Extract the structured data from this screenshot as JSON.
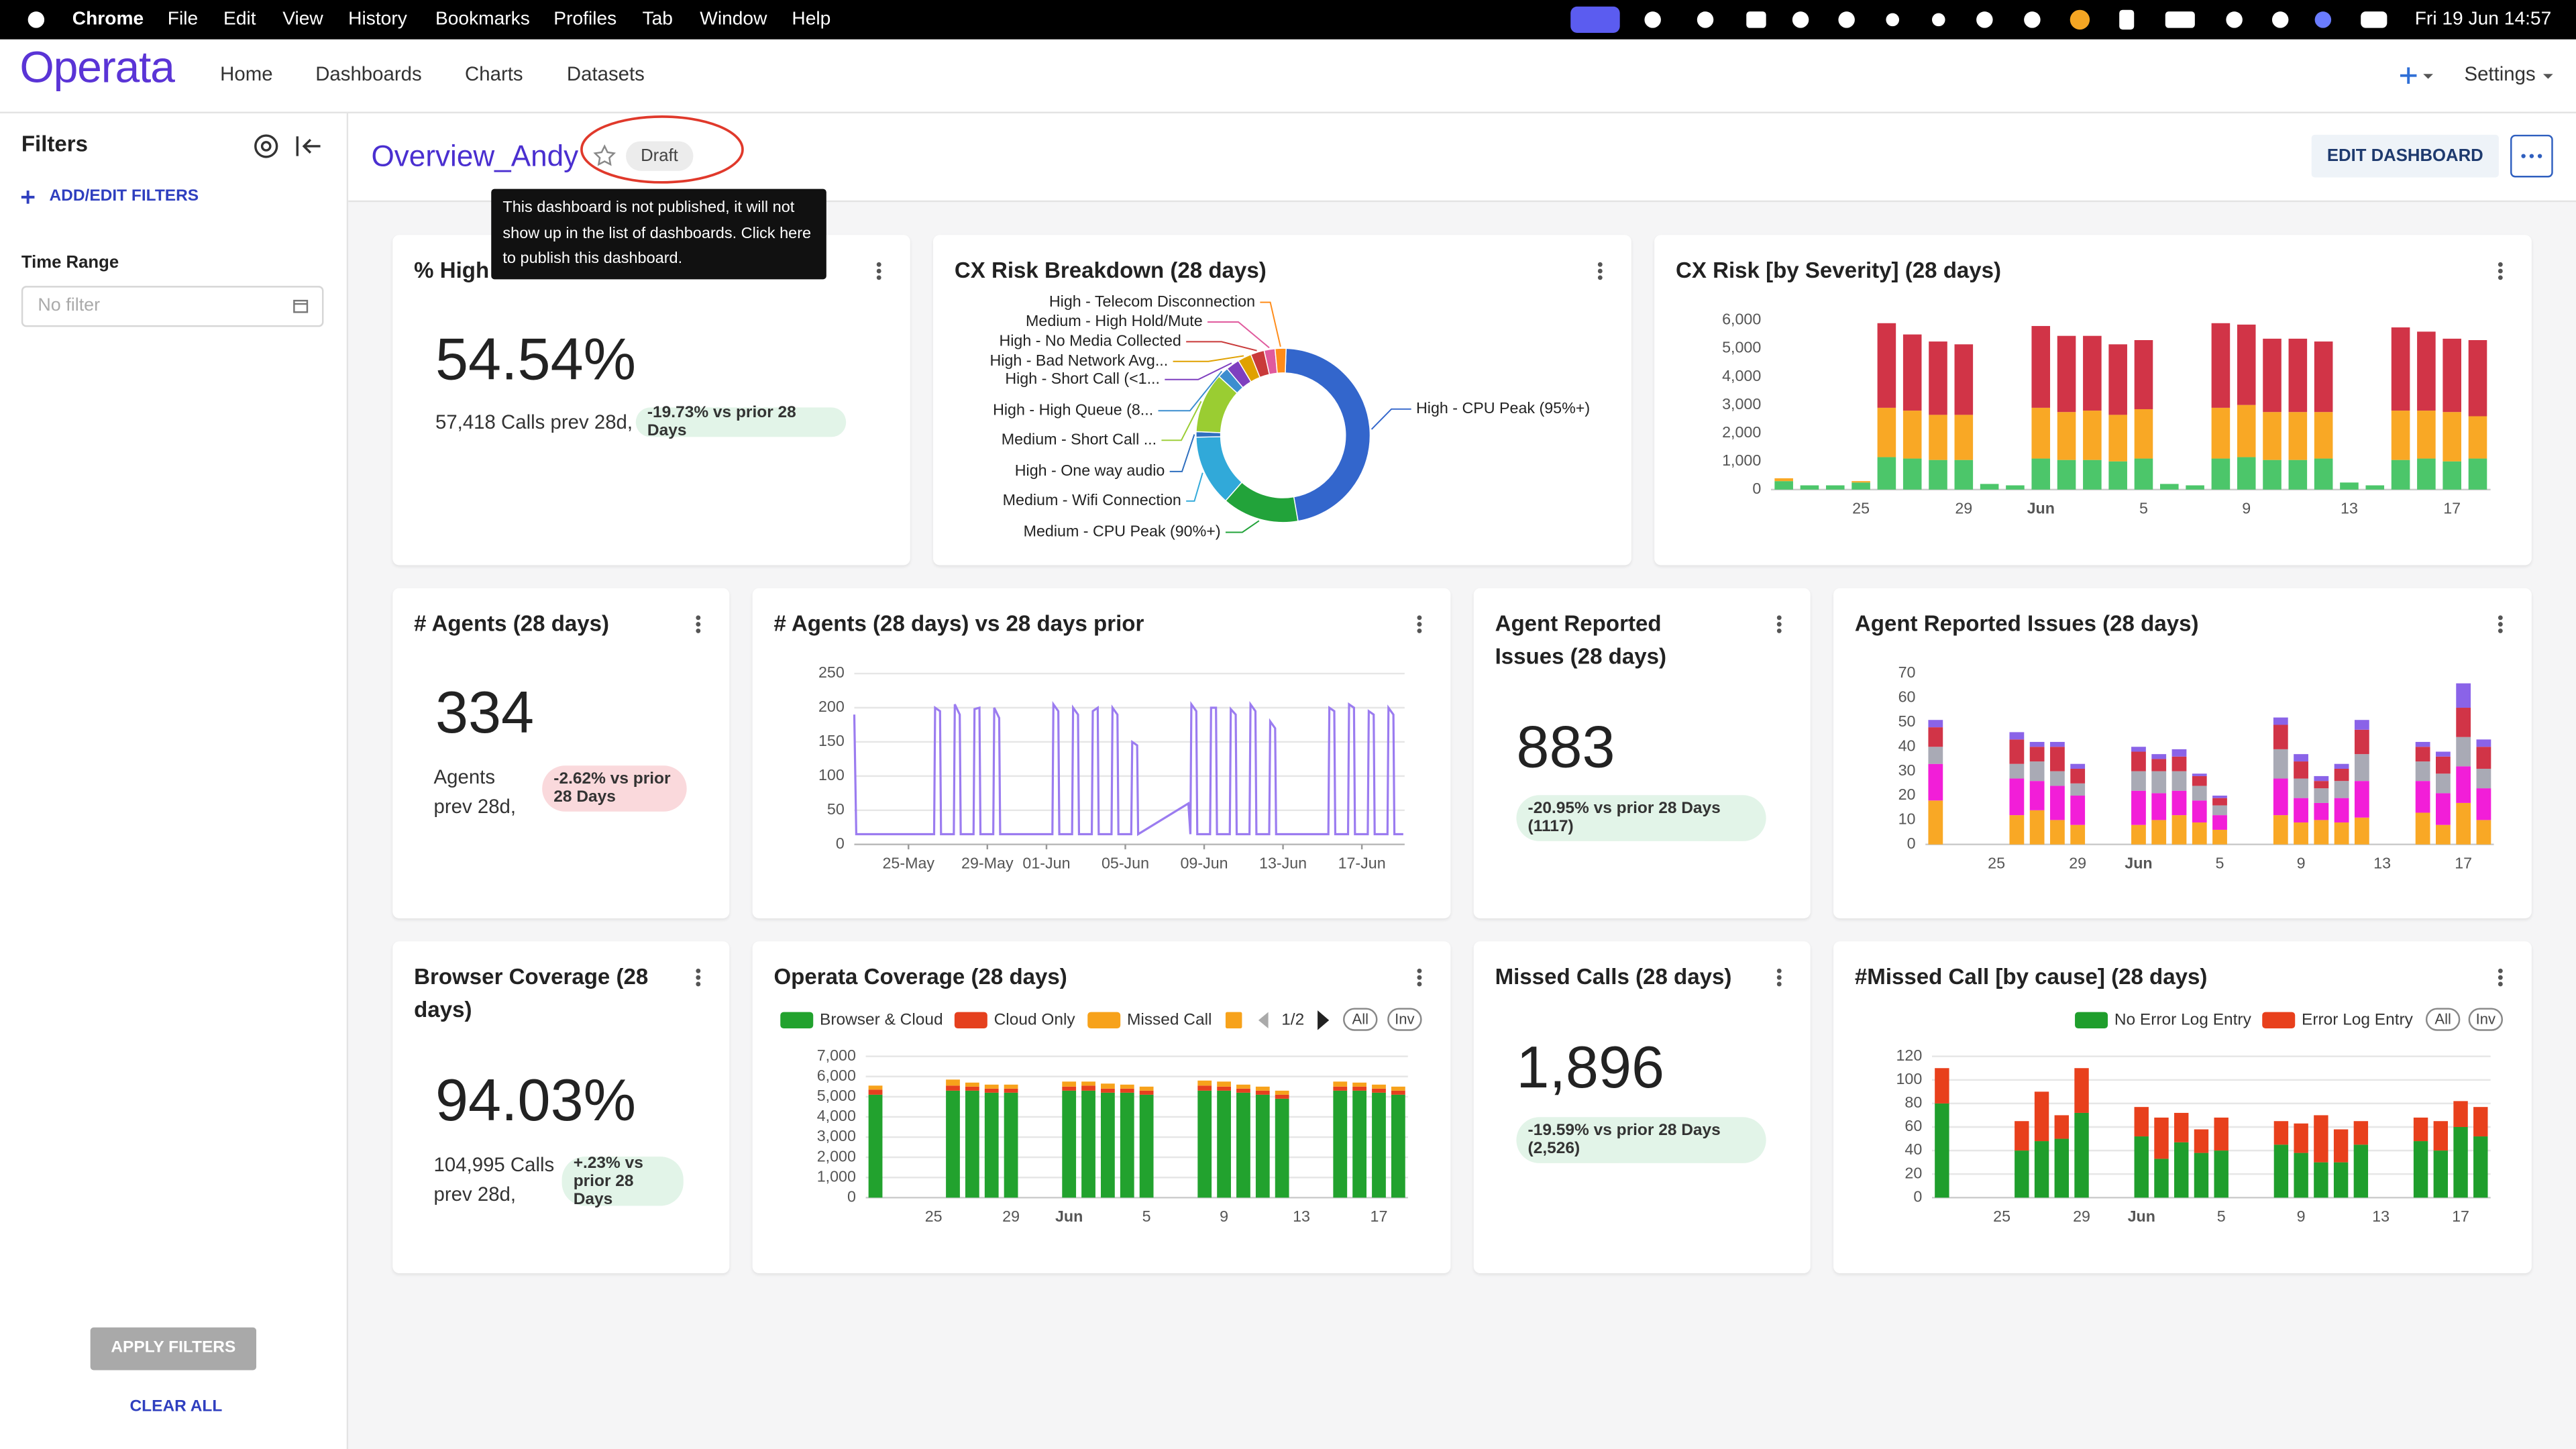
{
  "menubar": {
    "app": "Chrome",
    "items": [
      "File",
      "Edit",
      "View",
      "History",
      "Bookmarks",
      "Profiles",
      "Tab",
      "Window",
      "Help"
    ],
    "clock": "Fri 19 Jun  14:57"
  },
  "nav": {
    "logo": "Operata",
    "links": [
      "Home",
      "Dashboards",
      "Charts",
      "Datasets"
    ],
    "settings": "Settings"
  },
  "sidebar": {
    "title": "Filters",
    "add_filters": "ADD/EDIT FILTERS",
    "time_range_label": "Time Range",
    "time_range_placeholder": "No filter",
    "apply": "APPLY FILTERS",
    "clear": "CLEAR ALL"
  },
  "dashboard": {
    "title": "Overview_Andy",
    "status": "Draft",
    "edit_button": "EDIT DASHBOARD",
    "tooltip": "This dashboard is not published, it will not show up in the list of dashboards. Click here to publish this dashboard."
  },
  "kpis": [
    {
      "title": "% High",
      "value": "54.54%",
      "subtext": "57,418 Calls prev 28d,",
      "badge": "-19.73% vs prior 28 Days",
      "badge_color": "#e2f4e8"
    },
    {
      "title": "# Agents (28 days)",
      "value": "334",
      "subtext": "Agents prev 28d,",
      "badge": "-2.62% vs prior 28 Days",
      "badge_color": "#fad9dc"
    },
    {
      "title": "Agent Reported Issues (28 days)",
      "value": "883",
      "badge": "-20.95% vs prior 28 Days (1117)",
      "badge_color": "#e2f4e8"
    },
    {
      "title": "Browser Coverage (28 days)",
      "value": "94.03%",
      "subtext": "104,995 Calls prev 28d,",
      "badge": "+.23% vs prior 28 Days",
      "badge_color": "#e2f4e8"
    },
    {
      "title": "Missed Calls (28 days)",
      "value": "1,896",
      "badge": "-19.59% vs prior 28 Days (2,526)",
      "badge_color": "#e2f4e8"
    }
  ],
  "chart_data": [
    {
      "type": "donut",
      "title": "CX Risk Breakdown (28 days)",
      "labels": [
        "High - CPU Peak (95%+)",
        "Medium - CPU Peak (90%+)",
        "Medium - Wifi Connection",
        "High - One way audio",
        "Medium - Short Call  ...",
        "High - High Queue (8...",
        "High - Short Call (<1...",
        "High - Bad Network Avg...",
        "High - No Media Collected",
        "Medium - High Hold/Mute",
        "High - Telecom Disconnection"
      ],
      "values": [
        46,
        14,
        13,
        1,
        11,
        2,
        2.5,
        2.5,
        2.5,
        2,
        2
      ],
      "colors": [
        "#3366cc",
        "#22a33a",
        "#31a9d9",
        "#2f6fbf",
        "#9acd32",
        "#3c8ecf",
        "#7f3fbf",
        "#e0a100",
        "#c93a3a",
        "#e05a9d",
        "#ff8c1a"
      ]
    },
    {
      "type": "stacked-bar",
      "title": "CX Risk [by Severity] (28 days)",
      "categories": [
        null,
        null,
        null,
        "25",
        null,
        null,
        null,
        "29",
        null,
        null,
        "Jun",
        null,
        null,
        null,
        "5",
        null,
        null,
        null,
        "9",
        null,
        null,
        null,
        "13",
        null,
        null,
        null,
        "17",
        null
      ],
      "series": [
        {
          "color": "#4cc66a",
          "values": [
            300,
            150,
            150,
            250,
            1150,
            1100,
            1050,
            1050,
            200,
            150,
            1100,
            1050,
            1050,
            1000,
            1100,
            200,
            150,
            1100,
            1150,
            1050,
            1050,
            1100,
            250,
            150,
            1050,
            1100,
            1000,
            1100
          ]
        },
        {
          "color": "#f9a825",
          "values": [
            100,
            0,
            0,
            50,
            1750,
            1700,
            1600,
            1600,
            0,
            0,
            1800,
            1700,
            1750,
            1650,
            1750,
            0,
            0,
            1800,
            1850,
            1700,
            1700,
            1650,
            0,
            0,
            1750,
            1700,
            1750,
            1500
          ]
        },
        {
          "color": "#d13447",
          "values": [
            0,
            0,
            0,
            0,
            3000,
            2700,
            2600,
            2500,
            0,
            0,
            2900,
            2700,
            2650,
            2500,
            2450,
            0,
            0,
            3000,
            2850,
            2600,
            2600,
            2500,
            0,
            0,
            2950,
            2800,
            2600,
            2700
          ]
        }
      ],
      "ylim": [
        0,
        6000
      ],
      "yticks": [
        0,
        {
          "value": 1000,
          "label": "1,000"
        },
        {
          "value": 2000,
          "label": "2,000"
        },
        {
          "value": 3000,
          "label": "3,000"
        },
        {
          "value": 4000,
          "label": "4,000"
        },
        {
          "value": 5000,
          "label": "5,000"
        },
        {
          "value": 6000,
          "label": "6,000"
        }
      ],
      "grid": false
    },
    {
      "type": "line",
      "title": "# Agents (28 days) vs 28 days prior",
      "color": "#9b7cf0",
      "x": [
        -2.75,
        -2.65,
        1.3,
        1.35,
        1.6,
        1.65,
        2.3,
        2.35,
        2.6,
        2.65,
        3.3,
        3.35,
        3.6,
        3.65,
        4.3,
        4.35,
        4.6,
        4.65,
        7.3,
        7.35,
        7.6,
        7.65,
        8.3,
        8.35,
        8.6,
        8.65,
        9.3,
        9.35,
        9.6,
        9.65,
        10.3,
        10.35,
        10.6,
        10.65,
        11.3,
        11.35,
        11.6,
        11.65,
        14.2,
        14.3,
        14.35,
        14.6,
        14.65,
        15.3,
        15.35,
        15.6,
        15.65,
        16.3,
        16.35,
        16.6,
        16.65,
        17.3,
        17.35,
        17.6,
        17.65,
        18.3,
        18.35,
        18.6,
        18.65,
        21.3,
        21.35,
        21.6,
        21.65,
        22.3,
        22.35,
        22.6,
        22.65,
        23.3,
        23.35,
        23.6,
        23.65,
        24.3,
        24.35,
        24.6,
        24.65,
        25.1
      ],
      "values": [
        190,
        15,
        15,
        200,
        195,
        15,
        15,
        205,
        190,
        15,
        15,
        198,
        200,
        15,
        15,
        200,
        185,
        15,
        15,
        205,
        195,
        15,
        15,
        200,
        190,
        15,
        15,
        195,
        200,
        15,
        15,
        200,
        190,
        15,
        15,
        150,
        145,
        15,
        60,
        15,
        205,
        195,
        15,
        15,
        200,
        200,
        15,
        15,
        198,
        190,
        15,
        15,
        205,
        195,
        15,
        15,
        180,
        170,
        15,
        15,
        200,
        195,
        15,
        15,
        205,
        200,
        15,
        15,
        195,
        190,
        15,
        15,
        200,
        190,
        15,
        15
      ],
      "xlim": [
        -2.75,
        25.17
      ],
      "xticks": [
        {
          "value": 0,
          "label": "25-May"
        },
        {
          "value": 4,
          "label": "29-May"
        },
        {
          "value": 7,
          "label": "01-Jun"
        },
        {
          "value": 11,
          "label": "05-Jun"
        },
        {
          "value": 15,
          "label": "09-Jun"
        },
        {
          "value": 19,
          "label": "13-Jun"
        },
        {
          "value": 23,
          "label": "17-Jun"
        }
      ],
      "ylim": [
        0,
        250
      ],
      "yticks": [
        0,
        50,
        100,
        150,
        200,
        250
      ],
      "grid": true
    },
    {
      "type": "stacked-bar",
      "title": "Agent Reported Issues (28 days)",
      "categories": [
        null,
        null,
        null,
        "25",
        null,
        null,
        null,
        "29",
        null,
        null,
        "Jun",
        null,
        null,
        null,
        "5",
        null,
        null,
        null,
        "9",
        null,
        null,
        null,
        "13",
        null,
        null,
        null,
        "17",
        null
      ],
      "series": [
        {
          "color": "#f9a825",
          "values": [
            18,
            0,
            0,
            0,
            12,
            14,
            10,
            8,
            0,
            0,
            8,
            10,
            12,
            9,
            6,
            0,
            0,
            12,
            9,
            10,
            9,
            11,
            0,
            0,
            13,
            8,
            17,
            10
          ]
        },
        {
          "color": "#f21ed8",
          "values": [
            15,
            0,
            0,
            0,
            15,
            12,
            14,
            12,
            0,
            0,
            14,
            11,
            10,
            9,
            6,
            0,
            0,
            15,
            10,
            7,
            10,
            15,
            0,
            0,
            13,
            13,
            15,
            13
          ]
        },
        {
          "color": "#a9aab5",
          "values": [
            7,
            0,
            0,
            0,
            6,
            8,
            6,
            5,
            0,
            0,
            8,
            9,
            8,
            6,
            4,
            0,
            0,
            12,
            8,
            6,
            7,
            11,
            0,
            0,
            8,
            8,
            12,
            8
          ]
        },
        {
          "color": "#d13447",
          "values": [
            8,
            0,
            0,
            0,
            10,
            6,
            10,
            6,
            0,
            0,
            8,
            5,
            6,
            4,
            3,
            0,
            0,
            10,
            7,
            3,
            5,
            10,
            0,
            0,
            6,
            7,
            12,
            9
          ]
        },
        {
          "color": "#8a63e8",
          "values": [
            3,
            0,
            0,
            0,
            3,
            2,
            2,
            2,
            0,
            0,
            2,
            2,
            3,
            1,
            1,
            0,
            0,
            3,
            3,
            2,
            2,
            4,
            0,
            0,
            2,
            2,
            10,
            3
          ]
        }
      ],
      "ylim": [
        0,
        70
      ],
      "yticks": [
        0,
        10,
        20,
        30,
        40,
        50,
        60,
        70
      ],
      "grid": false
    },
    {
      "type": "stacked-bar",
      "title": "Operata Coverage (28 days)",
      "categories": [
        null,
        null,
        null,
        "25",
        null,
        null,
        null,
        "29",
        null,
        null,
        "Jun",
        null,
        null,
        null,
        "5",
        null,
        null,
        null,
        "9",
        null,
        null,
        null,
        "13",
        null,
        null,
        null,
        "17",
        null
      ],
      "series": [
        {
          "name": "Browser & Cloud",
          "color": "#22a22e",
          "values": [
            5100,
            0,
            0,
            0,
            5300,
            5300,
            5200,
            5200,
            0,
            0,
            5300,
            5300,
            5200,
            5200,
            5100,
            0,
            0,
            5300,
            5300,
            5200,
            5100,
            4900,
            0,
            0,
            5300,
            5300,
            5200,
            5100
          ]
        },
        {
          "name": "Cloud Only",
          "color": "#e5401e",
          "values": [
            250,
            0,
            0,
            0,
            250,
            200,
            200,
            200,
            0,
            0,
            200,
            250,
            200,
            200,
            200,
            0,
            0,
            250,
            200,
            200,
            200,
            200,
            0,
            0,
            200,
            200,
            200,
            200
          ]
        },
        {
          "name": "Missed Call",
          "color": "#f7a21b",
          "values": [
            200,
            0,
            0,
            0,
            300,
            200,
            200,
            200,
            0,
            0,
            250,
            200,
            250,
            200,
            200,
            0,
            0,
            250,
            250,
            200,
            200,
            200,
            0,
            0,
            250,
            200,
            200,
            200
          ]
        }
      ],
      "legend_page": "1/2",
      "legend_buttons": [
        "All",
        "Inv"
      ],
      "ylim": [
        0,
        7000
      ],
      "yticks": [
        0,
        {
          "value": 1000,
          "label": "1,000"
        },
        {
          "value": 2000,
          "label": "2,000"
        },
        {
          "value": 3000,
          "label": "3,000"
        },
        {
          "value": 4000,
          "label": "4,000"
        },
        {
          "value": 5000,
          "label": "5,000"
        },
        {
          "value": 6000,
          "label": "6,000"
        },
        {
          "value": 7000,
          "label": "7,000"
        }
      ],
      "grid": true
    },
    {
      "type": "stacked-bar",
      "title": "#Missed Call [by cause] (28 days)",
      "categories": [
        null,
        null,
        null,
        "25",
        null,
        null,
        null,
        "29",
        null,
        null,
        "Jun",
        null,
        null,
        null,
        "5",
        null,
        null,
        null,
        "9",
        null,
        null,
        null,
        "13",
        null,
        null,
        null,
        "17",
        null
      ],
      "series": [
        {
          "name": "No Error Log Entry",
          "color": "#1f9e2c",
          "values": [
            80,
            0,
            0,
            0,
            40,
            48,
            50,
            72,
            0,
            0,
            52,
            33,
            47,
            38,
            40,
            0,
            0,
            45,
            38,
            30,
            30,
            45,
            0,
            0,
            48,
            40,
            60,
            52
          ]
        },
        {
          "name": "Error Log Entry",
          "color": "#e8401c",
          "values": [
            30,
            0,
            0,
            0,
            25,
            42,
            20,
            38,
            0,
            0,
            25,
            35,
            25,
            20,
            28,
            0,
            0,
            20,
            25,
            40,
            28,
            20,
            0,
            0,
            20,
            25,
            22,
            25
          ]
        }
      ],
      "legend_buttons": [
        "All",
        "Inv"
      ],
      "ylim": [
        0,
        120
      ],
      "yticks": [
        0,
        20,
        40,
        60,
        80,
        100,
        120
      ],
      "grid": true
    }
  ]
}
